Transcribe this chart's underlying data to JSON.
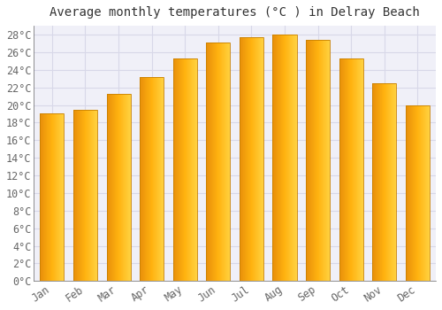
{
  "title": "Average monthly temperatures (°C ) in Delray Beach",
  "months": [
    "Jan",
    "Feb",
    "Mar",
    "Apr",
    "May",
    "Jun",
    "Jul",
    "Aug",
    "Sep",
    "Oct",
    "Nov",
    "Dec"
  ],
  "values": [
    19.0,
    19.5,
    21.3,
    23.2,
    25.3,
    27.1,
    27.7,
    28.0,
    27.4,
    25.3,
    22.5,
    20.0
  ],
  "bar_color_center": "#FFB020",
  "bar_color_left": "#E8900A",
  "bar_color_right": "#FFD060",
  "bar_edge_color": "#C88000",
  "background_color": "#ffffff",
  "plot_bg_color": "#f0f0f8",
  "grid_color": "#d8d8e8",
  "title_color": "#333333",
  "tick_color": "#666666",
  "ylim": [
    0,
    29
  ],
  "yticks": [
    0,
    2,
    4,
    6,
    8,
    10,
    12,
    14,
    16,
    18,
    20,
    22,
    24,
    26,
    28
  ],
  "title_fontsize": 10,
  "tick_fontsize": 8.5,
  "bar_width": 0.72
}
